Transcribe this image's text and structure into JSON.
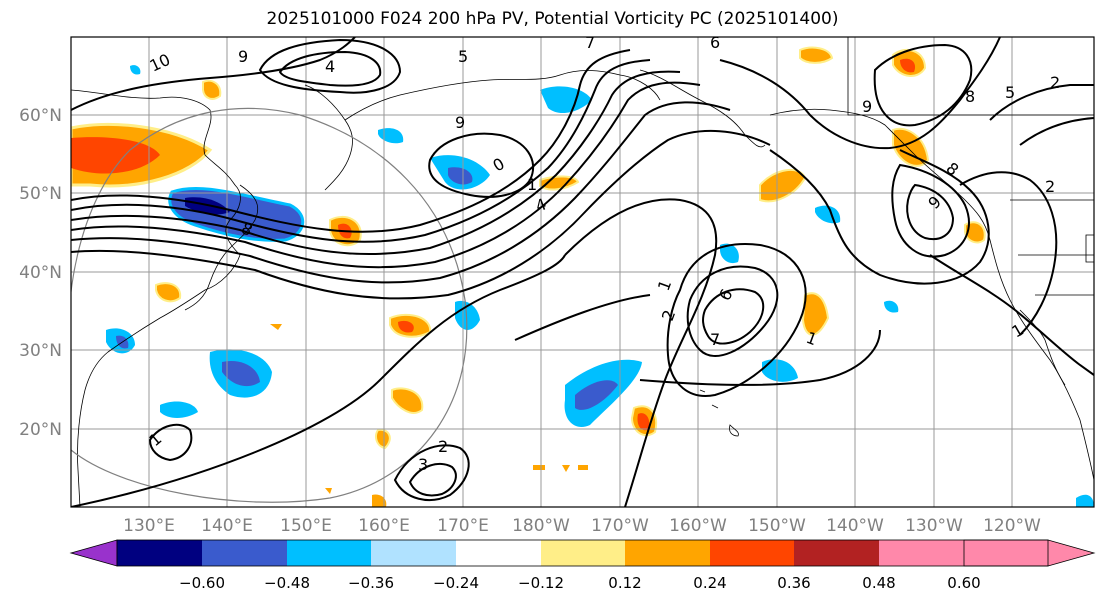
{
  "title": "2025101000 F024 200 hPa PV, Potential Vorticity PC (2025101400)",
  "axes": {
    "lat_labels": [
      "60°N",
      "50°N",
      "40°N",
      "30°N",
      "20°N"
    ],
    "lon_labels": [
      "130°E",
      "140°E",
      "150°E",
      "160°E",
      "170°E",
      "180°W",
      "170°W",
      "160°W",
      "150°W",
      "140°W",
      "130°W",
      "120°W"
    ]
  },
  "contour_labels": [
    "10",
    "9",
    "4",
    "5",
    "7",
    "6",
    "8",
    "9",
    "0",
    "1",
    "4",
    "9",
    "8",
    "5",
    "2",
    "1",
    "2",
    "6",
    "7",
    "1",
    "9",
    "8",
    "2",
    "1",
    "2",
    "3",
    "1"
  ],
  "colorbar": {
    "colors": [
      "#9932CC",
      "#000080",
      "#3A5BCD",
      "#00BFFF",
      "#B0E2FF",
      "#FFFFFF",
      "#FFEE88",
      "#FFA500",
      "#FF4500",
      "#B22222",
      "#FF88AA"
    ],
    "tick_labels": [
      "−0.60",
      "−0.48",
      "−0.36",
      "−0.24",
      "−0.12",
      "0.12",
      "0.24",
      "0.36",
      "0.48",
      "0.60"
    ]
  }
}
